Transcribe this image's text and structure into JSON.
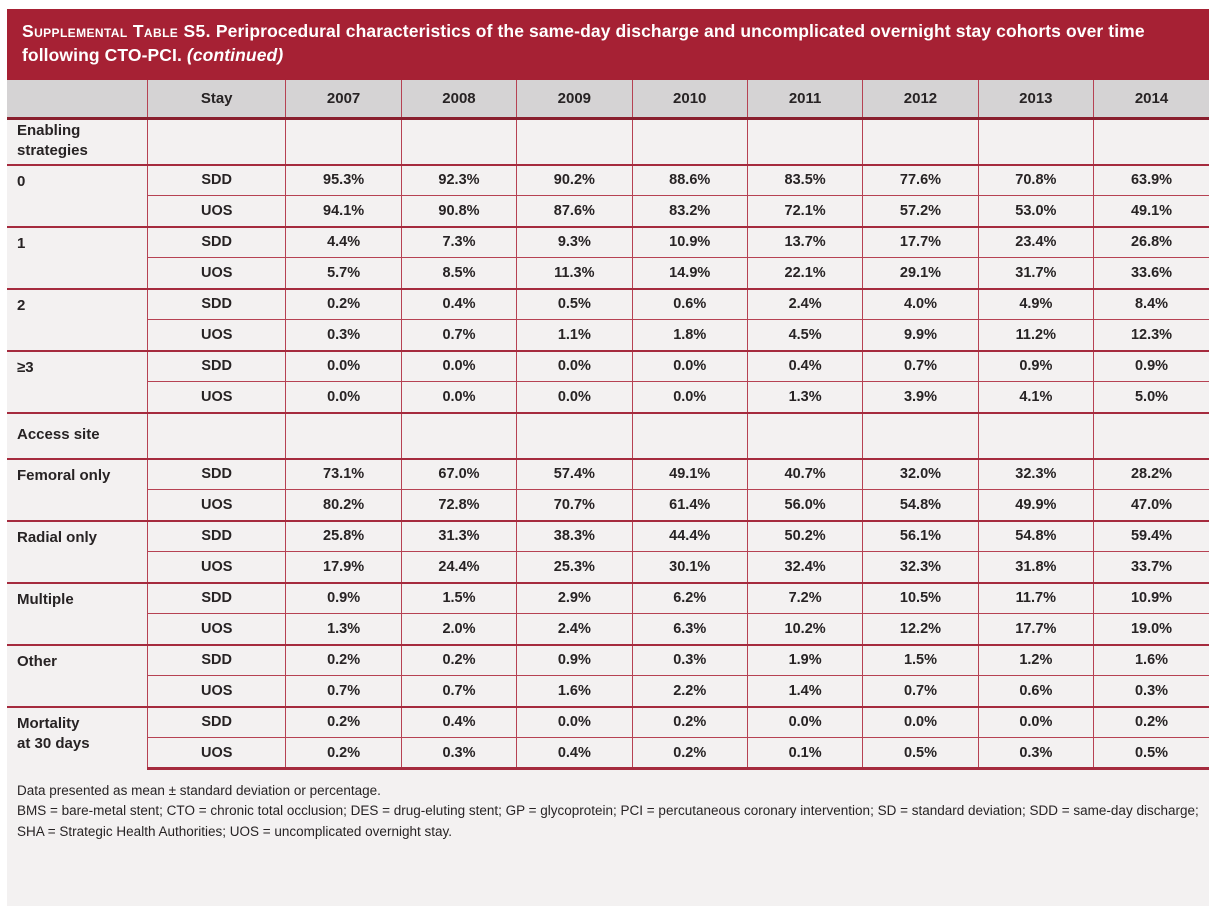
{
  "title": {
    "label_smallcaps": "Supplemental Table S5.",
    "text": " Periprocedural characteristics of the same-day discharge and uncomplicated overnight stay cohorts over time following CTO-PCI. ",
    "continued": "(continued)"
  },
  "colors": {
    "title_bar": "#a62134",
    "header_bg": "#d5d3d4",
    "body_bg": "#f3f1f1",
    "grid_line": "#b64253",
    "grid_line_thick": "#a52b3e",
    "header_rule": "#8a1f2e",
    "text": "#272324"
  },
  "chart_data": {
    "type": "table",
    "columns": [
      "",
      "Stay",
      "2007",
      "2008",
      "2009",
      "2010",
      "2011",
      "2012",
      "2013",
      "2014"
    ],
    "rows": [
      {
        "kind": "section",
        "label": "Enabling\nstrategies"
      },
      {
        "kind": "group",
        "label": "0",
        "sdd": [
          "95.3%",
          "92.3%",
          "90.2%",
          "88.6%",
          "83.5%",
          "77.6%",
          "70.8%",
          "63.9%"
        ],
        "uos": [
          "94.1%",
          "90.8%",
          "87.6%",
          "83.2%",
          "72.1%",
          "57.2%",
          "53.0%",
          "49.1%"
        ]
      },
      {
        "kind": "group",
        "label": "1",
        "sdd": [
          "4.4%",
          "7.3%",
          "9.3%",
          "10.9%",
          "13.7%",
          "17.7%",
          "23.4%",
          "26.8%"
        ],
        "uos": [
          "5.7%",
          "8.5%",
          "11.3%",
          "14.9%",
          "22.1%",
          "29.1%",
          "31.7%",
          "33.6%"
        ]
      },
      {
        "kind": "group",
        "label": "2",
        "sdd": [
          "0.2%",
          "0.4%",
          "0.5%",
          "0.6%",
          "2.4%",
          "4.0%",
          "4.9%",
          "8.4%"
        ],
        "uos": [
          "0.3%",
          "0.7%",
          "1.1%",
          "1.8%",
          "4.5%",
          "9.9%",
          "11.2%",
          "12.3%"
        ]
      },
      {
        "kind": "group",
        "label": "≥3",
        "sdd": [
          "0.0%",
          "0.0%",
          "0.0%",
          "0.0%",
          "0.4%",
          "0.7%",
          "0.9%",
          "0.9%"
        ],
        "uos": [
          "0.0%",
          "0.0%",
          "0.0%",
          "0.0%",
          "1.3%",
          "3.9%",
          "4.1%",
          "5.0%"
        ]
      },
      {
        "kind": "section",
        "label": "Access site"
      },
      {
        "kind": "group",
        "label": "Femoral only",
        "sdd": [
          "73.1%",
          "67.0%",
          "57.4%",
          "49.1%",
          "40.7%",
          "32.0%",
          "32.3%",
          "28.2%"
        ],
        "uos": [
          "80.2%",
          "72.8%",
          "70.7%",
          "61.4%",
          "56.0%",
          "54.8%",
          "49.9%",
          "47.0%"
        ]
      },
      {
        "kind": "group",
        "label": "Radial only",
        "sdd": [
          "25.8%",
          "31.3%",
          "38.3%",
          "44.4%",
          "50.2%",
          "56.1%",
          "54.8%",
          "59.4%"
        ],
        "uos": [
          "17.9%",
          "24.4%",
          "25.3%",
          "30.1%",
          "32.4%",
          "32.3%",
          "31.8%",
          "33.7%"
        ]
      },
      {
        "kind": "group",
        "label": "Multiple",
        "sdd": [
          "0.9%",
          "1.5%",
          "2.9%",
          "6.2%",
          "7.2%",
          "10.5%",
          "11.7%",
          "10.9%"
        ],
        "uos": [
          "1.3%",
          "2.0%",
          "2.4%",
          "6.3%",
          "10.2%",
          "12.2%",
          "17.7%",
          "19.0%"
        ]
      },
      {
        "kind": "group",
        "label": "Other",
        "sdd": [
          "0.2%",
          "0.2%",
          "0.9%",
          "0.3%",
          "1.9%",
          "1.5%",
          "1.2%",
          "1.6%"
        ],
        "uos": [
          "0.7%",
          "0.7%",
          "1.6%",
          "2.2%",
          "1.4%",
          "0.7%",
          "0.6%",
          "0.3%"
        ]
      },
      {
        "kind": "group",
        "label": "Mortality\nat 30 days",
        "sdd": [
          "0.2%",
          "0.4%",
          "0.0%",
          "0.2%",
          "0.0%",
          "0.0%",
          "0.0%",
          "0.2%"
        ],
        "uos": [
          "0.2%",
          "0.3%",
          "0.4%",
          "0.2%",
          "0.1%",
          "0.5%",
          "0.3%",
          "0.5%"
        ]
      }
    ],
    "stay_labels": {
      "sdd": "SDD",
      "uos": "UOS"
    }
  },
  "footnotes": [
    "Data presented as mean ± standard deviation or percentage.",
    "BMS = bare-metal stent; CTO = chronic total occlusion; DES = drug-eluting stent; GP = glycoprotein; PCI = percutaneous coronary intervention; SD = standard deviation; SDD = same-day discharge; SHA = Strategic Health Authorities; UOS = uncomplicated overnight stay."
  ]
}
